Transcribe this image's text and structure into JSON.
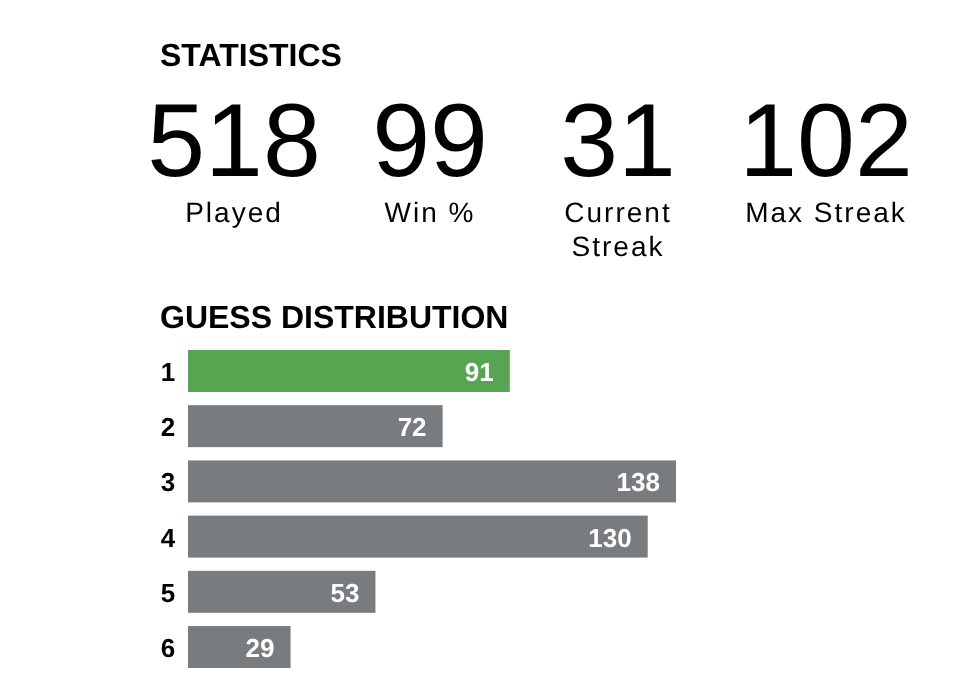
{
  "chart_data": [
    {
      "type": "other",
      "title": "STATISTICS",
      "categories": [
        "Played",
        "Win %",
        "Current Streak",
        "Max Streak"
      ],
      "values": [
        518,
        99,
        31,
        102
      ],
      "data_labels": true
    },
    {
      "type": "bar",
      "orientation": "horizontal",
      "title": "GUESS DISTRIBUTION",
      "categories": [
        "1",
        "2",
        "3",
        "4",
        "5",
        "6"
      ],
      "values": [
        91,
        72,
        138,
        130,
        53,
        29
      ],
      "colors": [
        "#57a550",
        "#787c7f",
        "#787c7f",
        "#787c7f",
        "#787c7f",
        "#787c7f"
      ],
      "data_labels": true
    }
  ]
}
